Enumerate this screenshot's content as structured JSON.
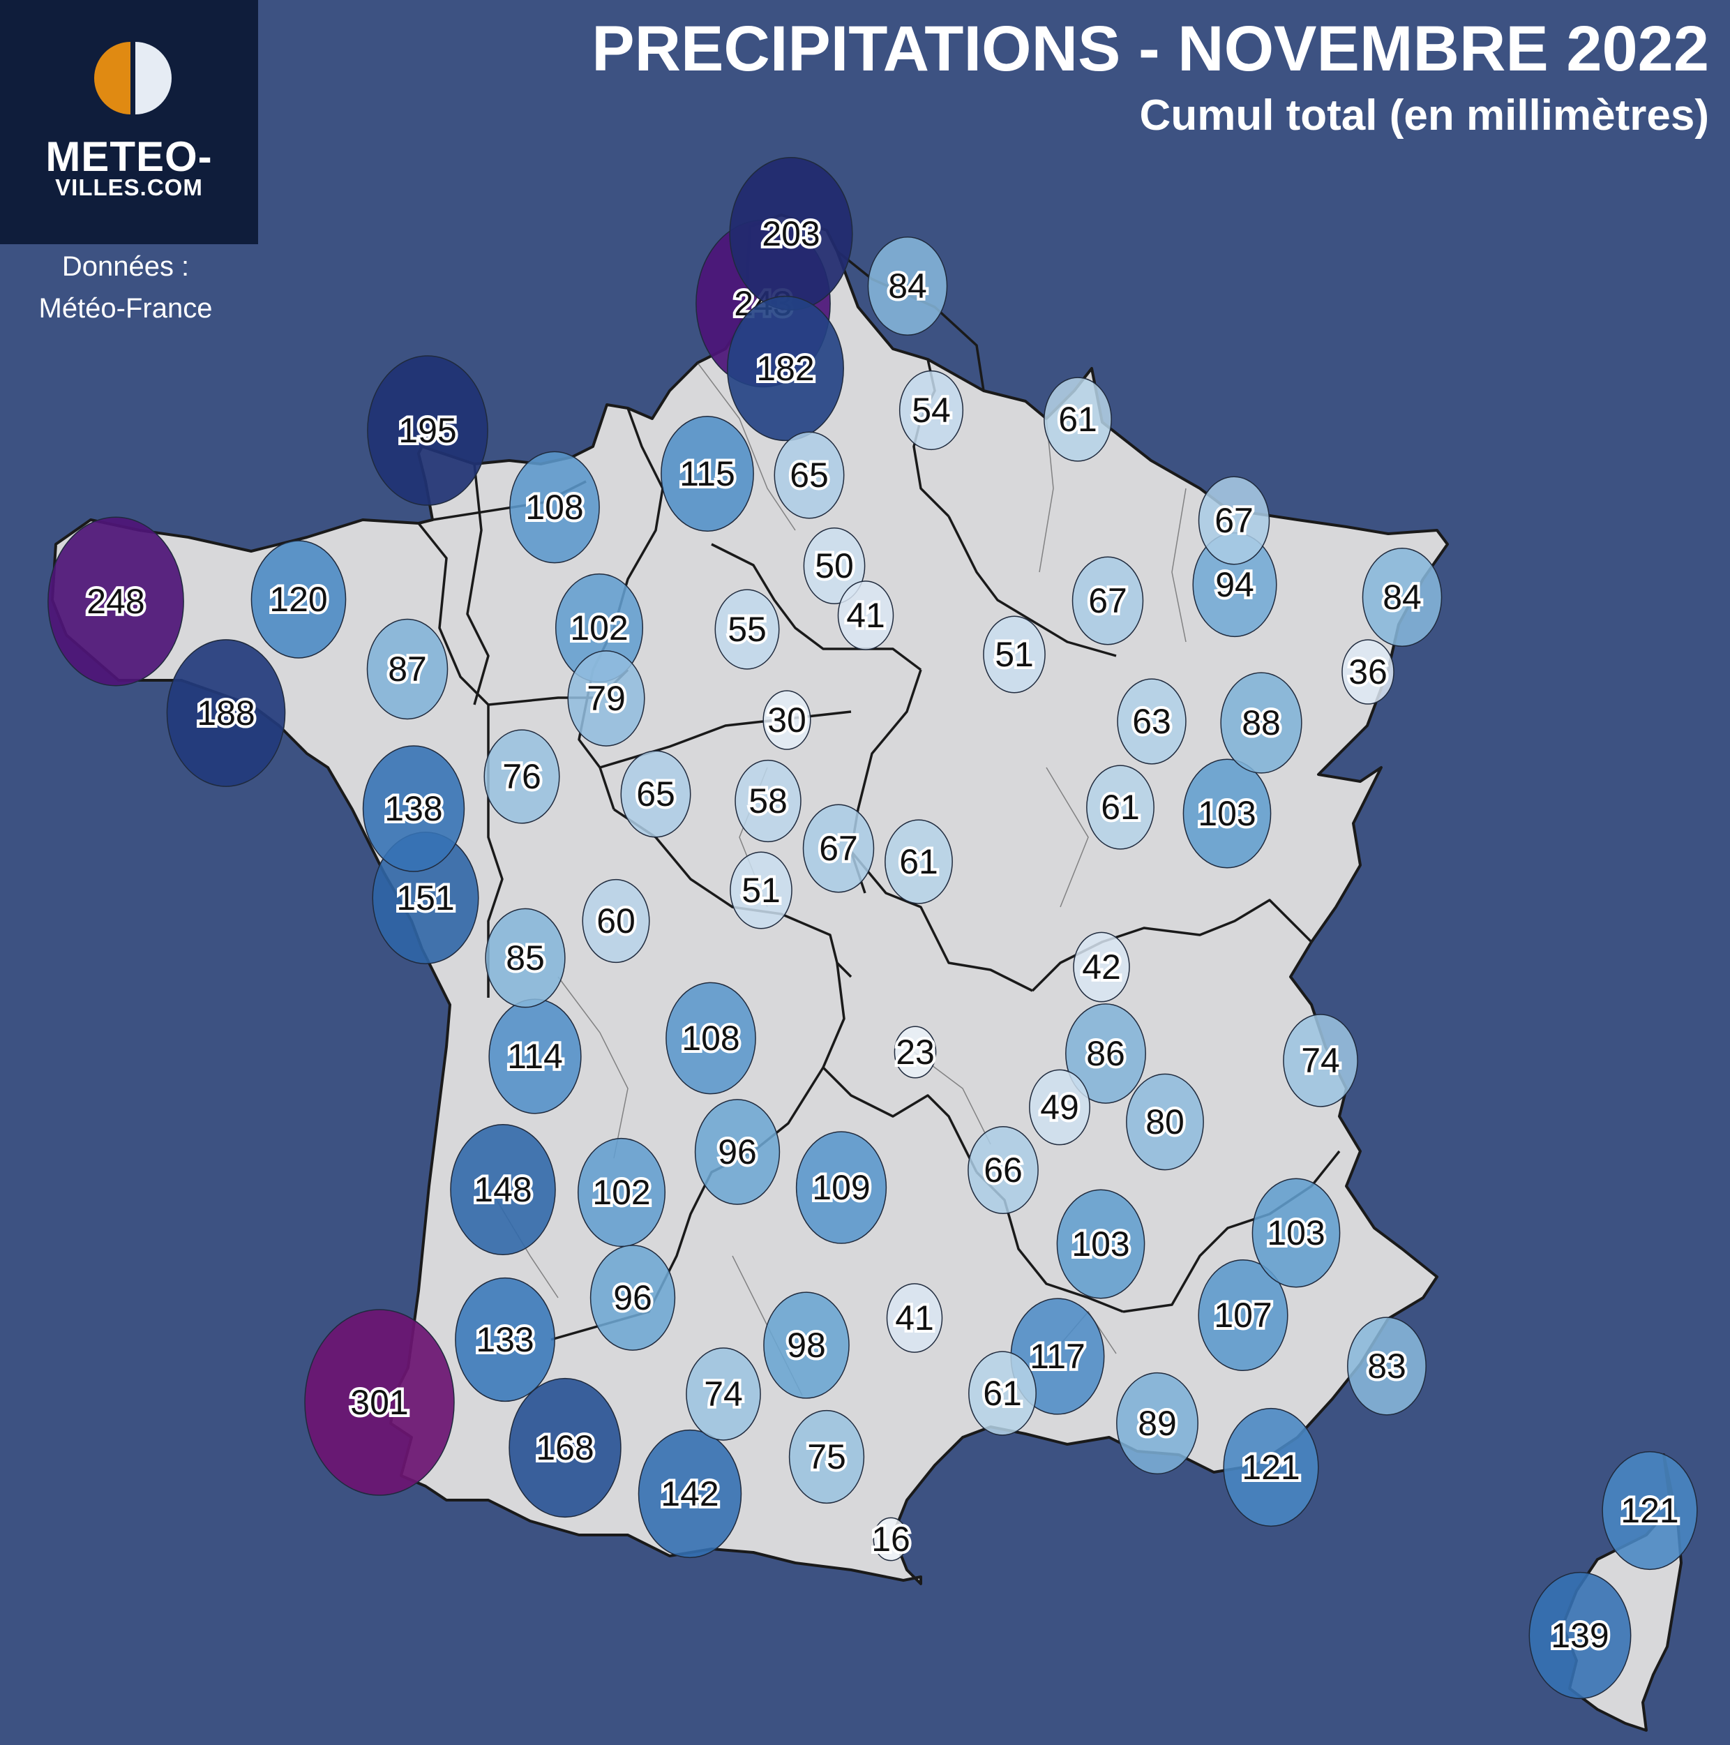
{
  "header": {
    "title": "PRECIPITATIONS - NOVEMBRE 2022",
    "subtitle": "Cumul total (en millimètres)"
  },
  "branding": {
    "line1": "METEO-",
    "line2": "VILLES.COM",
    "logo_icon": "half-sun-half-moon-icon",
    "colors": {
      "sun": "#e08a12",
      "moon": "#e6ecf4",
      "box": "#0f1d3b"
    }
  },
  "source": {
    "line1": "Données :",
    "line2": "Météo-France"
  },
  "colors": {
    "background": "#3d5282",
    "land": "#d8d8da",
    "borders": "#1a1a1a"
  },
  "chart_data": {
    "type": "proportional-symbol-map",
    "unit": "mm",
    "stations": [
      {
        "value": 203
      },
      {
        "value": 243
      },
      {
        "value": 84
      },
      {
        "value": 182
      },
      {
        "value": 195
      },
      {
        "value": 54
      },
      {
        "value": 61
      },
      {
        "value": 115
      },
      {
        "value": 65
      },
      {
        "value": 108
      },
      {
        "value": 67
      },
      {
        "value": 248
      },
      {
        "value": 120
      },
      {
        "value": 50
      },
      {
        "value": 94
      },
      {
        "value": 84
      },
      {
        "value": 102
      },
      {
        "value": 67
      },
      {
        "value": 55
      },
      {
        "value": 41
      },
      {
        "value": 87
      },
      {
        "value": 51
      },
      {
        "value": 36
      },
      {
        "value": 188
      },
      {
        "value": 79
      },
      {
        "value": 30
      },
      {
        "value": 63
      },
      {
        "value": 88
      },
      {
        "value": 76
      },
      {
        "value": 65
      },
      {
        "value": 58
      },
      {
        "value": 138
      },
      {
        "value": 61
      },
      {
        "value": 103
      },
      {
        "value": 67
      },
      {
        "value": 61
      },
      {
        "value": 151
      },
      {
        "value": 51
      },
      {
        "value": 60
      },
      {
        "value": 85
      },
      {
        "value": 42
      },
      {
        "value": 108
      },
      {
        "value": 114
      },
      {
        "value": 23
      },
      {
        "value": 86
      },
      {
        "value": 74
      },
      {
        "value": 49
      },
      {
        "value": 80
      },
      {
        "value": 96
      },
      {
        "value": 148
      },
      {
        "value": 102
      },
      {
        "value": 109
      },
      {
        "value": 66
      },
      {
        "value": 103
      },
      {
        "value": 103
      },
      {
        "value": 96
      },
      {
        "value": 133
      },
      {
        "value": 41
      },
      {
        "value": 107
      },
      {
        "value": 98
      },
      {
        "value": 117
      },
      {
        "value": 83
      },
      {
        "value": 301
      },
      {
        "value": 74
      },
      {
        "value": 61
      },
      {
        "value": 89
      },
      {
        "value": 168
      },
      {
        "value": 75
      },
      {
        "value": 121
      },
      {
        "value": 142
      },
      {
        "value": 121
      },
      {
        "value": 16
      },
      {
        "value": 139
      }
    ]
  }
}
